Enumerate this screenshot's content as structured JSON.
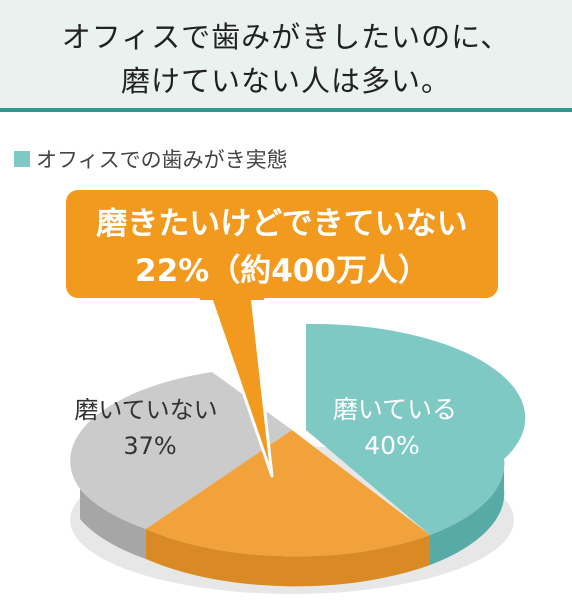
{
  "header": {
    "title_line1": "オフィスで歯みがきしたいのに、",
    "title_line2": "磨けていない人は多い。"
  },
  "legend": {
    "label": "オフィスでの歯みがき実態"
  },
  "colors": {
    "brushing": "#7fc9c5",
    "want_not": "#f2a23a",
    "not_brushing": "#c8c8c8",
    "accent": "#2a9a8e",
    "callout": "#f29a1e"
  },
  "chart_data": {
    "type": "pie",
    "title": "オフィスでの歯みがき実態",
    "slices": [
      {
        "name": "磨いている",
        "value": 40
      },
      {
        "name": "磨きたいけどできていない",
        "value": 22
      },
      {
        "name": "磨いていない",
        "value": 37
      }
    ],
    "labels": {
      "brushing": {
        "name": "磨いている",
        "pct": "40%"
      },
      "not_brushing": {
        "name": "磨いていない",
        "pct": "37%"
      },
      "callout_line1": "磨きたいけどできていない",
      "callout_line2": "22%（約400万人）"
    }
  }
}
